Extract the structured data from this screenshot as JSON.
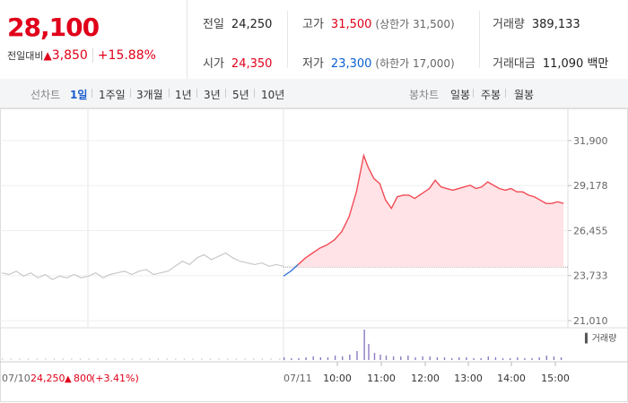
{
  "quote": {
    "price": "28,100",
    "change_label": "전일대비",
    "change_arrow": "▲",
    "change": "3,850",
    "change_pct": "+15.88%"
  },
  "stats": {
    "prev_close": {
      "label": "전일",
      "value": "24,250"
    },
    "high": {
      "label": "고가",
      "value": "31,500",
      "sub": "(상한가 31,500)"
    },
    "volume": {
      "label": "거래량",
      "value": "389,133"
    },
    "open": {
      "label": "시가",
      "value": "24,350"
    },
    "low": {
      "label": "저가",
      "value": "23,300",
      "sub": "(하한가 17,000)"
    },
    "amount": {
      "label": "거래대금",
      "value": "11,090 백만"
    }
  },
  "line_tabs": {
    "title": "선차트",
    "items": [
      "1일",
      "1주일",
      "3개월",
      "1년",
      "3년",
      "5년",
      "10년"
    ],
    "active": "1일"
  },
  "candle_tabs": {
    "title": "봉차트",
    "items": [
      "일봉",
      "주봉",
      "월봉"
    ]
  },
  "chart_data": {
    "type": "line",
    "y_ticks": [
      "31,900",
      "29,178",
      "26,455",
      "23,733",
      "21,010"
    ],
    "ylim": [
      21010,
      31900
    ],
    "baseline": 24250,
    "x_ticks": [
      "10:00",
      "11:00",
      "12:00",
      "13:00",
      "14:00",
      "15:00"
    ],
    "date_today": "07/11",
    "prev_day": {
      "date": "07/10",
      "close": "24,250",
      "arrow": "▲",
      "change": "800",
      "pct": "(+3.41%)"
    },
    "volume_legend": "거래량",
    "prev_series": [
      [
        0,
        23.9
      ],
      [
        5,
        23.8
      ],
      [
        10,
        24.0
      ],
      [
        15,
        23.7
      ],
      [
        20,
        23.9
      ],
      [
        25,
        23.6
      ],
      [
        30,
        23.8
      ],
      [
        35,
        23.5
      ],
      [
        40,
        23.7
      ],
      [
        45,
        23.6
      ],
      [
        50,
        23.8
      ],
      [
        55,
        23.6
      ],
      [
        60,
        23.7
      ],
      [
        65,
        23.9
      ],
      [
        70,
        23.6
      ],
      [
        75,
        23.8
      ],
      [
        80,
        23.9
      ],
      [
        85,
        24.0
      ],
      [
        90,
        23.8
      ],
      [
        95,
        24.0
      ],
      [
        100,
        24.1
      ],
      [
        105,
        23.8
      ],
      [
        110,
        23.9
      ],
      [
        115,
        24.0
      ],
      [
        120,
        24.3
      ],
      [
        125,
        24.6
      ],
      [
        130,
        24.4
      ],
      [
        135,
        24.8
      ],
      [
        140,
        25.0
      ],
      [
        145,
        24.7
      ],
      [
        150,
        24.9
      ],
      [
        155,
        25.1
      ],
      [
        160,
        24.8
      ],
      [
        165,
        24.6
      ],
      [
        170,
        24.5
      ],
      [
        175,
        24.4
      ],
      [
        180,
        24.5
      ],
      [
        185,
        24.3
      ],
      [
        190,
        24.4
      ],
      [
        195,
        24.3
      ]
    ],
    "today_series": [
      [
        0,
        23.7
      ],
      [
        5,
        24.0
      ],
      [
        10,
        24.4
      ],
      [
        15,
        24.8
      ],
      [
        20,
        25.1
      ],
      [
        25,
        25.4
      ],
      [
        30,
        25.6
      ],
      [
        35,
        25.9
      ],
      [
        40,
        26.4
      ],
      [
        45,
        27.3
      ],
      [
        50,
        28.8
      ],
      [
        55,
        31.0
      ],
      [
        58,
        30.3
      ],
      [
        62,
        29.6
      ],
      [
        66,
        29.3
      ],
      [
        70,
        28.3
      ],
      [
        74,
        27.8
      ],
      [
        78,
        28.5
      ],
      [
        82,
        28.6
      ],
      [
        86,
        28.6
      ],
      [
        90,
        28.4
      ],
      [
        95,
        28.7
      ],
      [
        100,
        29.0
      ],
      [
        104,
        29.5
      ],
      [
        108,
        29.1
      ],
      [
        112,
        29.0
      ],
      [
        116,
        28.9
      ],
      [
        120,
        29.0
      ],
      [
        124,
        29.1
      ],
      [
        128,
        29.2
      ],
      [
        132,
        29.0
      ],
      [
        136,
        29.1
      ],
      [
        140,
        29.4
      ],
      [
        144,
        29.2
      ],
      [
        148,
        29.0
      ],
      [
        152,
        28.9
      ],
      [
        156,
        29.0
      ],
      [
        160,
        28.8
      ],
      [
        164,
        28.8
      ],
      [
        168,
        28.6
      ],
      [
        172,
        28.5
      ],
      [
        176,
        28.3
      ],
      [
        180,
        28.1
      ],
      [
        184,
        28.1
      ],
      [
        188,
        28.2
      ],
      [
        192,
        28.1
      ]
    ],
    "volume_bars": [
      [
        0,
        3
      ],
      [
        5,
        2
      ],
      [
        10,
        2
      ],
      [
        15,
        3
      ],
      [
        20,
        4
      ],
      [
        25,
        3
      ],
      [
        30,
        3
      ],
      [
        35,
        5
      ],
      [
        40,
        4
      ],
      [
        45,
        6
      ],
      [
        50,
        10
      ],
      [
        55,
        34
      ],
      [
        58,
        18
      ],
      [
        62,
        8
      ],
      [
        66,
        6
      ],
      [
        70,
        5
      ],
      [
        75,
        4
      ],
      [
        80,
        4
      ],
      [
        85,
        5
      ],
      [
        90,
        3
      ],
      [
        95,
        4
      ],
      [
        100,
        4
      ],
      [
        105,
        3
      ],
      [
        110,
        3
      ],
      [
        115,
        2
      ],
      [
        120,
        3
      ],
      [
        125,
        3
      ],
      [
        130,
        2
      ],
      [
        135,
        2
      ],
      [
        140,
        4
      ],
      [
        145,
        3
      ],
      [
        150,
        2
      ],
      [
        155,
        2
      ],
      [
        160,
        3
      ],
      [
        165,
        2
      ],
      [
        170,
        2
      ],
      [
        175,
        3
      ],
      [
        180,
        5
      ],
      [
        185,
        4
      ],
      [
        190,
        3
      ]
    ]
  }
}
